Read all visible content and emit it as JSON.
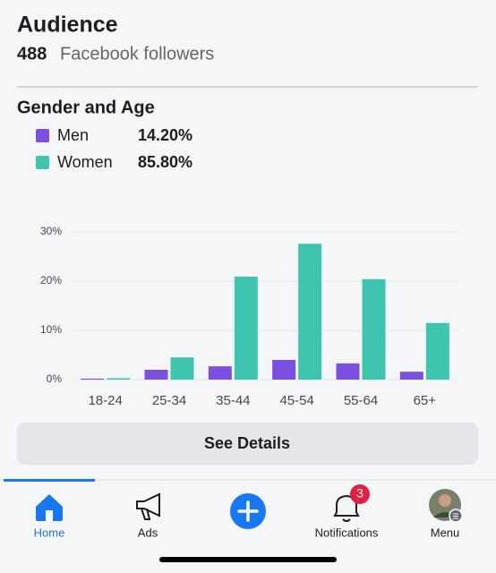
{
  "header": {
    "title": "Audience",
    "follower_count": "488",
    "follower_label": "Facebook followers"
  },
  "section_title": "Gender and Age",
  "legend_values": [
    "14.20%",
    "85.80%"
  ],
  "chart_data": {
    "type": "bar",
    "categories": [
      "18-24",
      "25-34",
      "35-44",
      "45-54",
      "55-64",
      "65+"
    ],
    "series": [
      {
        "name": "Men",
        "color": "#7b4fe0",
        "values": [
          0.2,
          2.0,
          2.7,
          4.0,
          3.3,
          1.6
        ]
      },
      {
        "name": "Women",
        "color": "#3fc4b0",
        "values": [
          0.3,
          4.5,
          20.9,
          27.6,
          20.4,
          11.5
        ]
      }
    ],
    "ylim": [
      0,
      30
    ],
    "yticks": [
      {
        "value": 0,
        "label": "0%"
      },
      {
        "value": 10,
        "label": "10%"
      },
      {
        "value": 20,
        "label": "20%"
      },
      {
        "value": 30,
        "label": "30%"
      }
    ],
    "grid": true
  },
  "button": "See Details",
  "nav": {
    "items": [
      "Home",
      "Ads",
      "Notifications",
      "Menu"
    ],
    "badge": "3"
  }
}
